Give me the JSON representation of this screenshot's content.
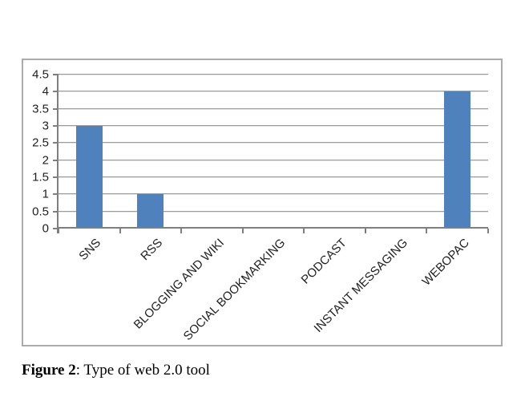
{
  "figure_caption": {
    "label": "Figure 2",
    "text": ": Type of web 2.0 tool"
  },
  "chart_data": {
    "type": "bar",
    "title": "",
    "xlabel": "",
    "ylabel": "",
    "categories": [
      "SNS",
      "RSS",
      "BLOGGING AND WIKI",
      "SOCIAL BOOKMARKING",
      "PODCAST",
      "INSTANT MESSAGING",
      "WEBOPAC"
    ],
    "values": [
      3,
      1,
      0,
      0,
      0,
      0,
      4
    ],
    "ylim": [
      0,
      4.5
    ],
    "ytick_step": 0.5,
    "ytick_labels": [
      "0",
      "0.5",
      "1",
      "1.5",
      "2",
      "2.5",
      "3",
      "3.5",
      "4",
      "4.5"
    ],
    "grid": true,
    "legend": "none",
    "x_label_rotation_deg": 45,
    "colors": {
      "bar": "#4F81BD",
      "gridline": "#9c9c9c",
      "gridline_light": "#e3e3e3",
      "axis": "#7f7f7f",
      "frame_border": "#ababab",
      "text": "#1f1f1f"
    }
  }
}
